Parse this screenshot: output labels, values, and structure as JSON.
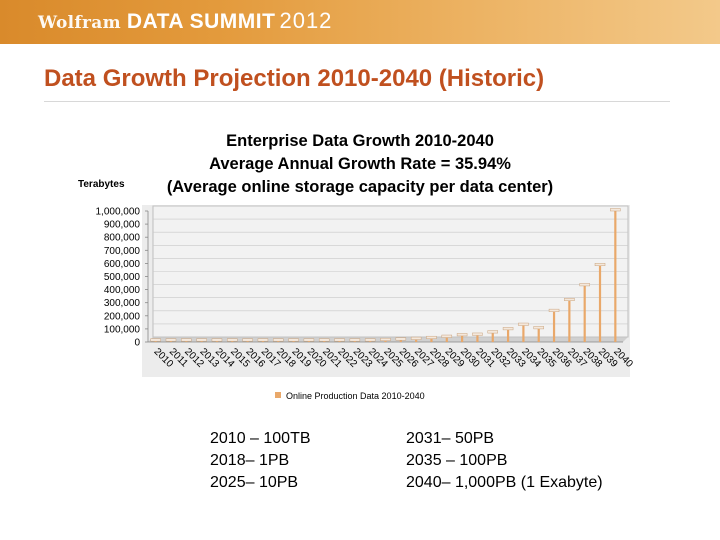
{
  "header": {
    "brand_wolfram": "Wolfram",
    "brand_data_summit": "DATA SUMMIT",
    "brand_year": "2012"
  },
  "slide_title": "Data Growth Projection 2010-2040 (Historic)",
  "captions": {
    "left": [
      "2010 – 100TB",
      "2018– 1PB",
      "2025– 10PB"
    ],
    "right": [
      "2031– 50PB",
      "2035 – 100PB",
      "2040– 1,000PB (1 Exabyte)"
    ]
  },
  "colors": {
    "accent_title": "#c0501f",
    "bar": "#e9a86a",
    "plot_bg": "#f2f2f2"
  },
  "chart_data": {
    "type": "bar",
    "title_lines": [
      "Enterprise Data Growth 2010-2040",
      "Average Annual Growth Rate = 35.94%",
      "(Average online storage capacity per data center)"
    ],
    "ylabel": "Terabytes",
    "ylim": [
      0,
      1000000
    ],
    "yticks": [
      "0",
      "100,000",
      "200,000",
      "300,000",
      "400,000",
      "500,000",
      "600,000",
      "700,000",
      "800,000",
      "900,000",
      "1,000,000"
    ],
    "categories": [
      "2010",
      "2011",
      "2012",
      "2013",
      "2014",
      "2015",
      "2016",
      "2017",
      "2018",
      "2019",
      "2020",
      "2021",
      "2022",
      "2023",
      "2024",
      "2025",
      "2026",
      "2027",
      "2028",
      "2029",
      "2030",
      "2031",
      "2032",
      "2033",
      "2034",
      "2035",
      "2036",
      "2037",
      "2038",
      "2039",
      "2040"
    ],
    "series": [
      {
        "name": "Online Production Data 2010-2040",
        "values": [
          100,
          136,
          185,
          251,
          341,
          464,
          631,
          858,
          1000,
          1360,
          1850,
          2510,
          3410,
          4640,
          6310,
          10000,
          13600,
          18500,
          25100,
          34100,
          46400,
          50000,
          68000,
          92500,
          125700,
          100000,
          231700,
          315000,
          428000,
          582000,
          1000000
        ]
      }
    ],
    "legend": "Online Production Data 2010-2040",
    "legend_position": "bottom"
  }
}
